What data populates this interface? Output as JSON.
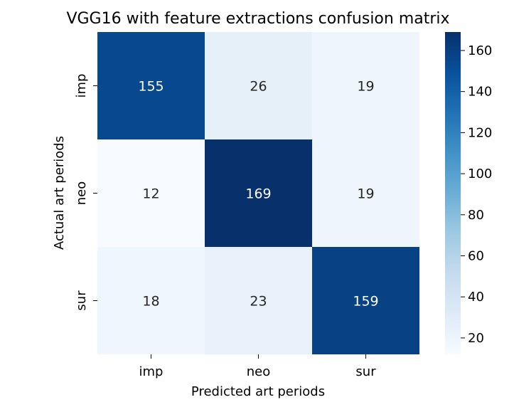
{
  "chart_data": {
    "type": "heatmap",
    "title": "VGG16 with feature extractions confusion matrix",
    "xlabel": "Predicted art periods",
    "ylabel": "Actual art periods",
    "x_categories": [
      "imp",
      "neo",
      "sur"
    ],
    "y_categories": [
      "imp",
      "neo",
      "sur"
    ],
    "values": [
      [
        155,
        26,
        19
      ],
      [
        12,
        169,
        19
      ],
      [
        18,
        23,
        159
      ]
    ],
    "colormap": "Blues",
    "colorbar": {
      "min": 12,
      "max": 169,
      "ticks": [
        20,
        40,
        60,
        80,
        100,
        120,
        140,
        160
      ]
    },
    "grid": false
  }
}
